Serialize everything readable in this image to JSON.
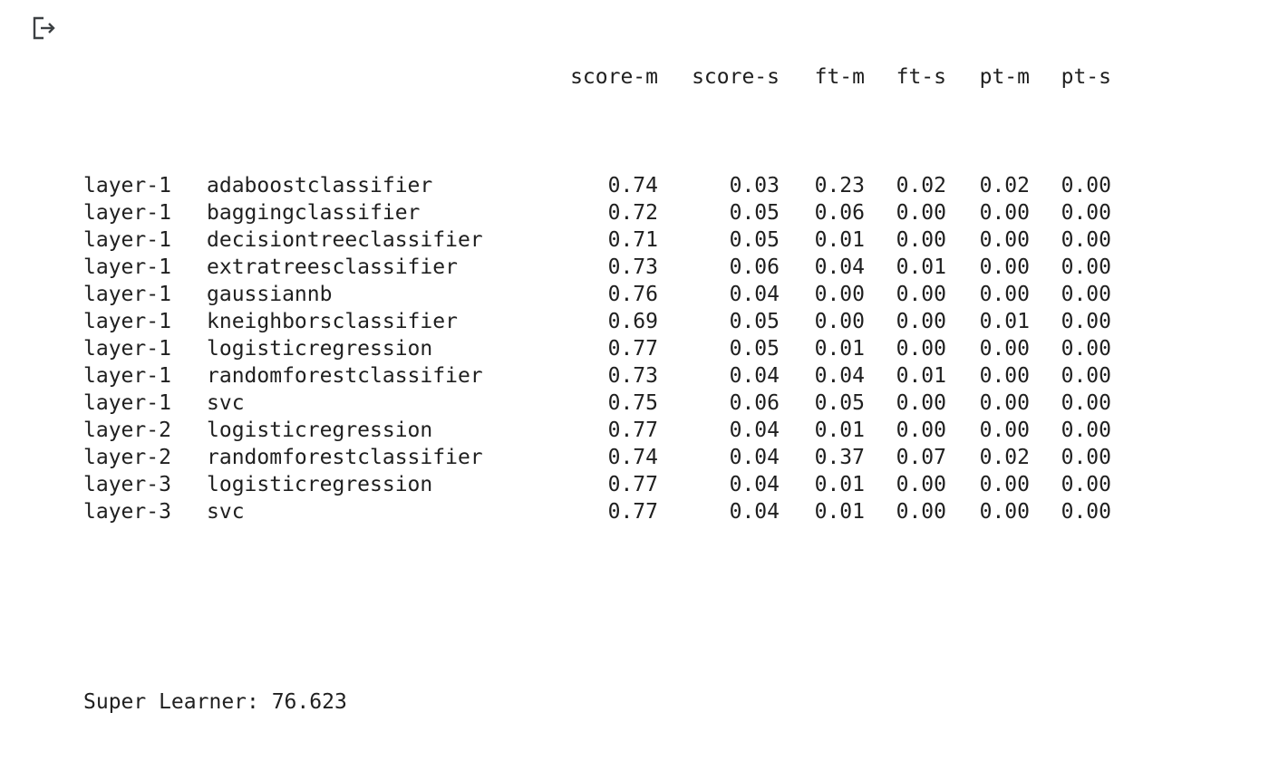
{
  "output": {
    "icon": "output-redirect-icon",
    "header": [
      "score-m",
      "score-s",
      "ft-m",
      "ft-s",
      "pt-m",
      "pt-s"
    ],
    "rows": [
      {
        "layer": "layer-1",
        "model": "adaboostclassifier",
        "score_m": "0.74",
        "score_s": "0.03",
        "ft_m": "0.23",
        "ft_s": "0.02",
        "pt_m": "0.02",
        "pt_s": "0.00"
      },
      {
        "layer": "layer-1",
        "model": "baggingclassifier",
        "score_m": "0.72",
        "score_s": "0.05",
        "ft_m": "0.06",
        "ft_s": "0.00",
        "pt_m": "0.00",
        "pt_s": "0.00"
      },
      {
        "layer": "layer-1",
        "model": "decisiontreeclassifier",
        "score_m": "0.71",
        "score_s": "0.05",
        "ft_m": "0.01",
        "ft_s": "0.00",
        "pt_m": "0.00",
        "pt_s": "0.00"
      },
      {
        "layer": "layer-1",
        "model": "extratreesclassifier",
        "score_m": "0.73",
        "score_s": "0.06",
        "ft_m": "0.04",
        "ft_s": "0.01",
        "pt_m": "0.00",
        "pt_s": "0.00"
      },
      {
        "layer": "layer-1",
        "model": "gaussiannb",
        "score_m": "0.76",
        "score_s": "0.04",
        "ft_m": "0.00",
        "ft_s": "0.00",
        "pt_m": "0.00",
        "pt_s": "0.00"
      },
      {
        "layer": "layer-1",
        "model": "kneighborsclassifier",
        "score_m": "0.69",
        "score_s": "0.05",
        "ft_m": "0.00",
        "ft_s": "0.00",
        "pt_m": "0.01",
        "pt_s": "0.00"
      },
      {
        "layer": "layer-1",
        "model": "logisticregression",
        "score_m": "0.77",
        "score_s": "0.05",
        "ft_m": "0.01",
        "ft_s": "0.00",
        "pt_m": "0.00",
        "pt_s": "0.00"
      },
      {
        "layer": "layer-1",
        "model": "randomforestclassifier",
        "score_m": "0.73",
        "score_s": "0.04",
        "ft_m": "0.04",
        "ft_s": "0.01",
        "pt_m": "0.00",
        "pt_s": "0.00"
      },
      {
        "layer": "layer-1",
        "model": "svc",
        "score_m": "0.75",
        "score_s": "0.06",
        "ft_m": "0.05",
        "ft_s": "0.00",
        "pt_m": "0.00",
        "pt_s": "0.00"
      },
      {
        "layer": "layer-2",
        "model": "logisticregression",
        "score_m": "0.77",
        "score_s": "0.04",
        "ft_m": "0.01",
        "ft_s": "0.00",
        "pt_m": "0.00",
        "pt_s": "0.00"
      },
      {
        "layer": "layer-2",
        "model": "randomforestclassifier",
        "score_m": "0.74",
        "score_s": "0.04",
        "ft_m": "0.37",
        "ft_s": "0.07",
        "pt_m": "0.02",
        "pt_s": "0.00"
      },
      {
        "layer": "layer-3",
        "model": "logisticregression",
        "score_m": "0.77",
        "score_s": "0.04",
        "ft_m": "0.01",
        "ft_s": "0.00",
        "pt_m": "0.00",
        "pt_s": "0.00"
      },
      {
        "layer": "layer-3",
        "model": "svc",
        "score_m": "0.77",
        "score_s": "0.04",
        "ft_m": "0.01",
        "ft_s": "0.00",
        "pt_m": "0.00",
        "pt_s": "0.00"
      }
    ],
    "super_learner": "Super Learner: 76.623"
  }
}
